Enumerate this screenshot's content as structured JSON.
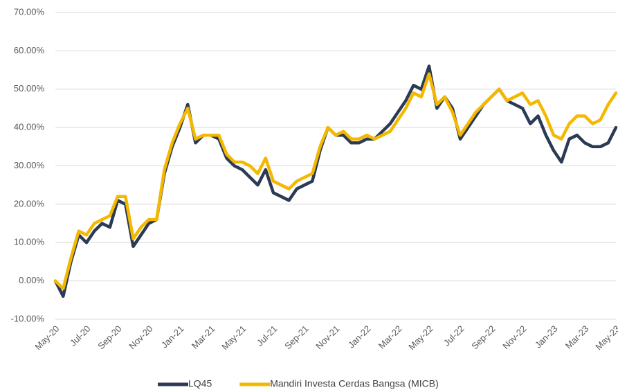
{
  "chart_data": {
    "type": "line",
    "categories": [
      "May-20",
      null,
      null,
      null,
      "Jul-20",
      null,
      null,
      null,
      "Sep-20",
      null,
      null,
      null,
      "Nov-20",
      null,
      null,
      null,
      "Jan-21",
      null,
      null,
      null,
      "Mar-21",
      null,
      null,
      null,
      "May-21",
      null,
      null,
      null,
      "Jul-21",
      null,
      null,
      null,
      "Sep-21",
      null,
      null,
      null,
      "Nov-21",
      null,
      null,
      null,
      "Jan-22",
      null,
      null,
      null,
      "Mar-22",
      null,
      null,
      null,
      "May-22",
      null,
      null,
      null,
      "Jul-22",
      null,
      null,
      null,
      "Sep-22",
      null,
      null,
      null,
      "Nov-22",
      null,
      null,
      null,
      "Jan-23",
      null,
      null,
      null,
      "Mar-23",
      null,
      null,
      null,
      "May-23"
    ],
    "series": [
      {
        "name": "LQ45",
        "color": "#2b3a55",
        "values": [
          0,
          -4,
          5,
          12,
          10,
          13,
          15,
          14,
          21,
          20,
          9,
          12,
          15,
          16,
          28,
          35,
          40,
          46,
          36,
          38,
          38,
          37,
          32,
          30,
          29,
          27,
          25,
          29,
          23,
          22,
          21,
          24,
          25,
          26,
          34,
          40,
          38,
          38,
          36,
          36,
          37,
          37,
          39,
          41,
          44,
          47,
          51,
          50,
          56,
          45,
          48,
          45,
          37,
          40,
          43,
          46,
          48,
          50,
          47,
          46,
          45,
          41,
          43,
          38,
          34,
          31,
          37,
          38,
          36,
          35,
          35,
          36,
          40
        ]
      },
      {
        "name": "Mandiri Investa Cerdas Bangsa (MICB)",
        "color": "#f5b800",
        "values": [
          0,
          -2,
          6,
          13,
          12,
          15,
          16,
          17,
          22,
          22,
          11,
          14,
          16,
          16,
          29,
          36,
          41,
          45,
          37,
          38,
          38,
          38,
          33,
          31,
          31,
          30,
          28,
          32,
          26,
          25,
          24,
          26,
          27,
          28,
          35,
          40,
          38,
          39,
          37,
          37,
          38,
          37,
          38,
          39,
          42,
          45,
          49,
          48,
          54,
          46,
          48,
          44,
          38,
          41,
          44,
          46,
          48,
          50,
          47,
          48,
          49,
          46,
          47,
          43,
          38,
          37,
          41,
          43,
          43,
          41,
          42,
          46,
          49
        ]
      }
    ],
    "ylim": [
      -10,
      70
    ],
    "yticks": [
      {
        "value": -10,
        "label": "-10.00%"
      },
      {
        "value": 0,
        "label": "0.00%"
      },
      {
        "value": 10,
        "label": "10.00%"
      },
      {
        "value": 20,
        "label": "20.00%"
      },
      {
        "value": 30,
        "label": "30.00%"
      },
      {
        "value": 40,
        "label": "40.00%"
      },
      {
        "value": 50,
        "label": "50.00%"
      },
      {
        "value": 60,
        "label": "60.00%"
      },
      {
        "value": 70,
        "label": "70.00%"
      }
    ],
    "grid": true,
    "legend": "bottom"
  }
}
